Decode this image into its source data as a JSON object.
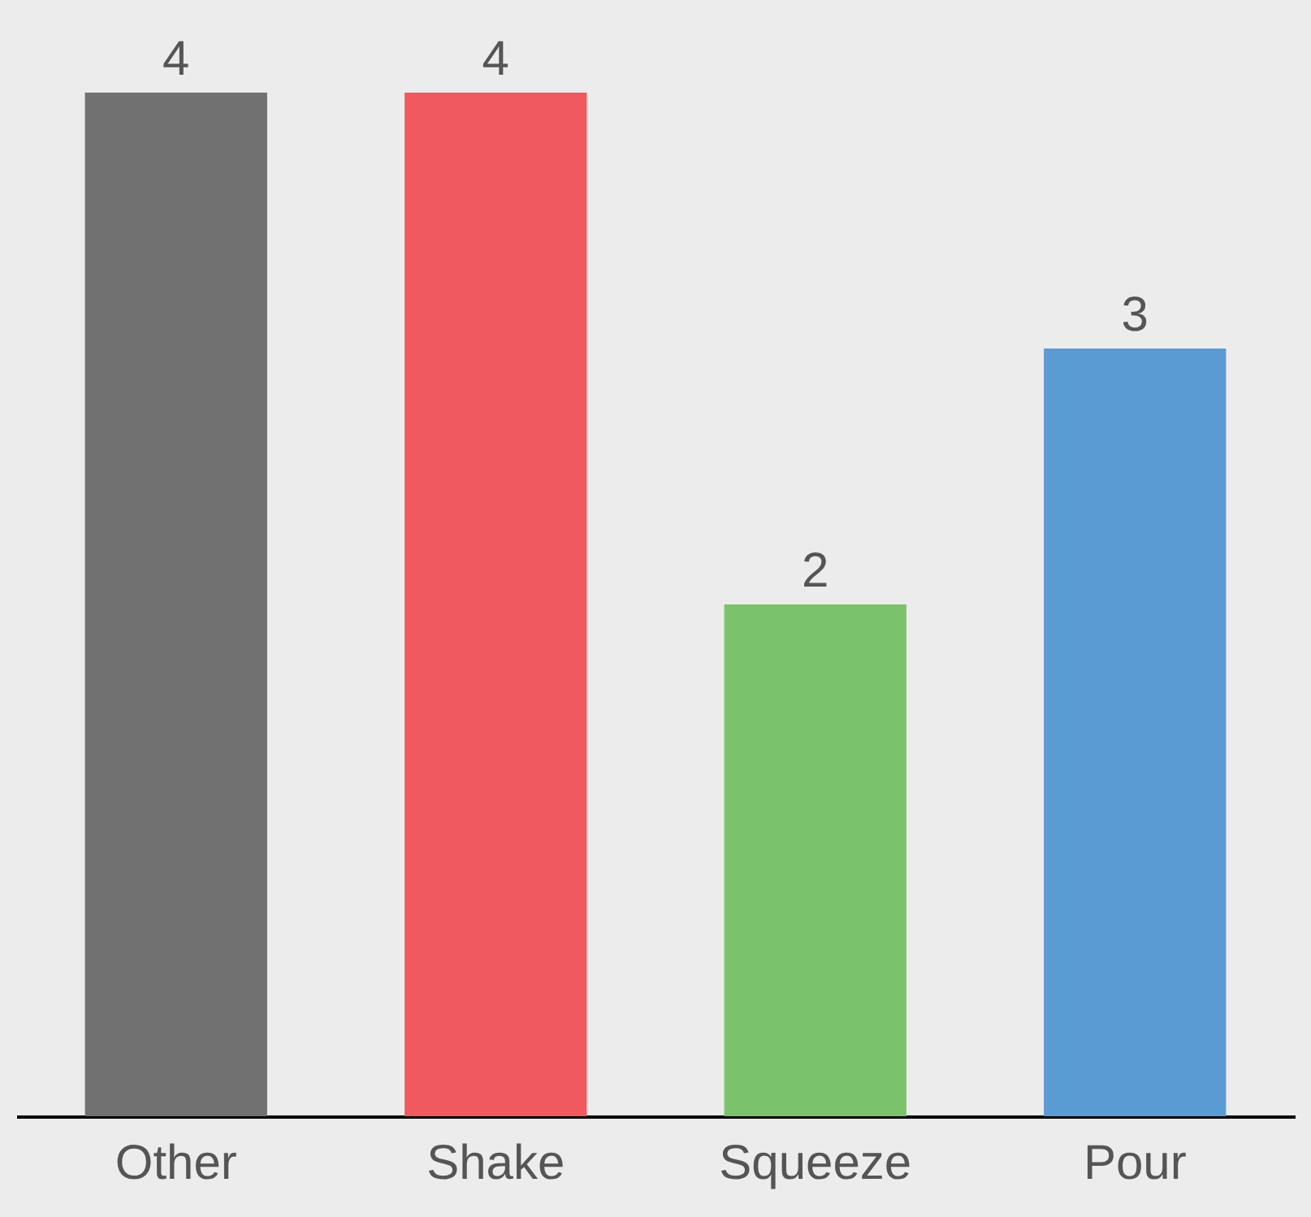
{
  "chart_data": {
    "type": "bar",
    "categories": [
      "Other",
      "Shake",
      "Squeeze",
      "Pour"
    ],
    "values": [
      4,
      4,
      2,
      3
    ],
    "colors": [
      "#717171",
      "#f05a5f",
      "#7ac36a",
      "#5a9bd4"
    ],
    "data_labels": true
  }
}
